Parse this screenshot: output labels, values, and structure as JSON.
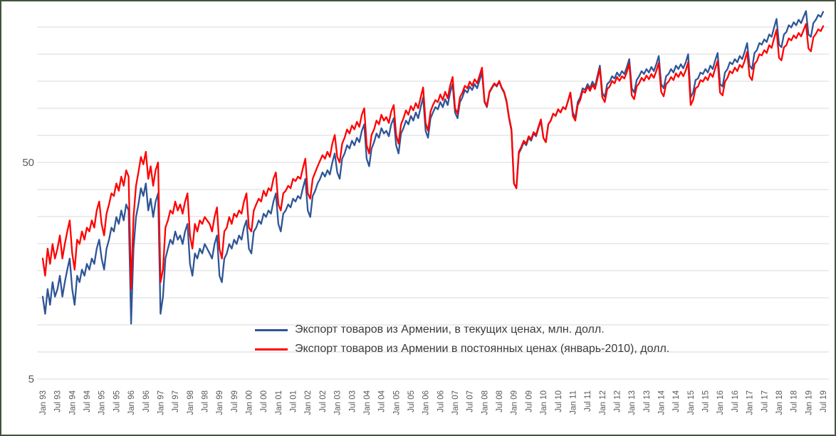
{
  "chart_data": {
    "type": "line",
    "title": "",
    "x_start": "Jan 1993",
    "x_freq": "monthly",
    "x_tick_labels": [
      "Jan 93",
      "Jul 93",
      "Jan 94",
      "Jul 94",
      "Jan 95",
      "Jul 95",
      "Jan 96",
      "Jul 96",
      "Jan 97",
      "Jul 97",
      "Jan 98",
      "Jul 98",
      "Jan 99",
      "Jul 99",
      "Jan 00",
      "Jul 00",
      "Jan 01",
      "Jul 01",
      "Jan 02",
      "Jul 02",
      "Jan 03",
      "Jul 03",
      "Jan 04",
      "Jul 04",
      "Jan 05",
      "Jul 05",
      "Jan 06",
      "Jul 06",
      "Jan 07",
      "Jul 07",
      "Jan 08",
      "Jul 08",
      "Jan 09",
      "Jul 09",
      "Jan 10",
      "Jul 10",
      "Jan 11",
      "Jul 11",
      "Jan 12",
      "Jul 12",
      "Jan 13",
      "Jul 13",
      "Jan 14",
      "Jul 14",
      "Jan 15",
      "Jul 15",
      "Jan 16",
      "Jul 16",
      "Jan 17",
      "Jul 17",
      "Jan 18",
      "Jul 18",
      "Jan 19",
      "Jul 19"
    ],
    "x_tick_step": 6,
    "y_axis": {
      "scale": "log",
      "tick_labels": [
        "50",
        "5"
      ],
      "tick_values": [
        50,
        5
      ],
      "ylim": [
        5,
        260
      ]
    },
    "grid": "horizontal",
    "legend_position": "inside-bottom-center",
    "series": [
      {
        "name": "Экспорт товаров из Армении, в текущих ценах, млн. долл.",
        "color": "#2e5596",
        "values": [
          12,
          10,
          13,
          11,
          14,
          12,
          13,
          15,
          12,
          14,
          16,
          18,
          13,
          11,
          15,
          14,
          16,
          15,
          17,
          16,
          18,
          17,
          20,
          22,
          18,
          16,
          20,
          22,
          25,
          24,
          28,
          26,
          30,
          27,
          32,
          30,
          9,
          20,
          28,
          32,
          38,
          35,
          40,
          30,
          34,
          28,
          33,
          36,
          10,
          12,
          18,
          20,
          22,
          21,
          24,
          22,
          23,
          21,
          24,
          26,
          17,
          15,
          19,
          18,
          20,
          19,
          21,
          20,
          19,
          18,
          21,
          23,
          15,
          14,
          18,
          19,
          21,
          20,
          22,
          21,
          23,
          22,
          25,
          27,
          20,
          19,
          24,
          25,
          27,
          26,
          29,
          28,
          30,
          29,
          33,
          36,
          26,
          24,
          29,
          30,
          32,
          31,
          34,
          33,
          35,
          34,
          38,
          42,
          30,
          28,
          35,
          37,
          40,
          42,
          45,
          43,
          46,
          44,
          50,
          55,
          45,
          42,
          52,
          55,
          60,
          58,
          63,
          60,
          65,
          62,
          70,
          75,
          52,
          48,
          58,
          62,
          68,
          65,
          72,
          68,
          70,
          66,
          75,
          80,
          60,
          55,
          68,
          72,
          78,
          75,
          82,
          78,
          85,
          80,
          90,
          100,
          70,
          65,
          80,
          85,
          90,
          88,
          95,
          90,
          98,
          92,
          105,
          115,
          85,
          80,
          95,
          100,
          108,
          105,
          112,
          108,
          115,
          110,
          120,
          130,
          95,
          90,
          105,
          110,
          115,
          112,
          118,
          110,
          105,
          95,
          80,
          70,
          40,
          38,
          55,
          58,
          62,
          60,
          65,
          63,
          68,
          66,
          72,
          78,
          65,
          62,
          75,
          78,
          84,
          82,
          88,
          85,
          90,
          88,
          96,
          105,
          85,
          80,
          95,
          100,
          110,
          108,
          115,
          110,
          118,
          112,
          125,
          140,
          105,
          100,
          115,
          118,
          125,
          122,
          130,
          125,
          132,
          128,
          138,
          150,
          110,
          105,
          120,
          125,
          132,
          128,
          135,
          130,
          138,
          132,
          142,
          155,
          115,
          110,
          125,
          128,
          135,
          130,
          140,
          135,
          142,
          136,
          145,
          158,
          100,
          105,
          120,
          122,
          130,
          128,
          135,
          130,
          140,
          135,
          148,
          160,
          115,
          112,
          130,
          135,
          145,
          142,
          150,
          145,
          155,
          150,
          162,
          178,
          140,
          135,
          160,
          165,
          178,
          175,
          185,
          180,
          195,
          190,
          210,
          230,
          175,
          170,
          195,
          200,
          215,
          210,
          222,
          215,
          228,
          220,
          235,
          250,
          195,
          190,
          220,
          228,
          240,
          235,
          248
        ]
      },
      {
        "name": "Экспорт товаров из Армении в постоянных ценах (январь-2010), долл.",
        "color": "#ff0000",
        "values": [
          18,
          15,
          20,
          17,
          21,
          18,
          20,
          23,
          18,
          21,
          24,
          27,
          19,
          16,
          22,
          21,
          24,
          22,
          25,
          24,
          27,
          25,
          30,
          33,
          26,
          23,
          29,
          32,
          36,
          35,
          40,
          37,
          43,
          39,
          46,
          43,
          13,
          28,
          39,
          45,
          53,
          49,
          56,
          42,
          48,
          39,
          46,
          50,
          14,
          16,
          25,
          27,
          30,
          29,
          33,
          30,
          32,
          29,
          33,
          36,
          23,
          20,
          26,
          24,
          27,
          26,
          28,
          27,
          26,
          24,
          28,
          31,
          20,
          18,
          24,
          25,
          28,
          26,
          29,
          28,
          30,
          29,
          33,
          36,
          25,
          24,
          30,
          32,
          34,
          33,
          37,
          35,
          38,
          37,
          42,
          45,
          32,
          30,
          36,
          37,
          39,
          38,
          42,
          41,
          43,
          42,
          47,
          52,
          36,
          34,
          42,
          45,
          48,
          51,
          54,
          52,
          56,
          53,
          61,
          67,
          53,
          50,
          61,
          65,
          71,
          68,
          74,
          71,
          77,
          73,
          83,
          89,
          60,
          55,
          67,
          71,
          78,
          75,
          83,
          78,
          81,
          76,
          86,
          92,
          67,
          61,
          75,
          80,
          87,
          83,
          91,
          87,
          94,
          89,
          100,
          111,
          76,
          70,
          86,
          92,
          97,
          95,
          103,
          97,
          106,
          99,
          113,
          124,
          89,
          84,
          100,
          105,
          113,
          110,
          118,
          113,
          121,
          116,
          126,
          137,
          96,
          91,
          106,
          111,
          116,
          113,
          119,
          111,
          106,
          96,
          81,
          71,
          40,
          38,
          56,
          59,
          63,
          61,
          66,
          64,
          69,
          67,
          73,
          79,
          65,
          62,
          75,
          78,
          84,
          82,
          88,
          85,
          90,
          88,
          96,
          105,
          82,
          78,
          92,
          97,
          107,
          105,
          112,
          107,
          114,
          109,
          121,
          136,
          100,
          95,
          109,
          112,
          119,
          116,
          124,
          119,
          125,
          122,
          131,
          143,
          102,
          98,
          112,
          116,
          123,
          119,
          126,
          121,
          128,
          123,
          132,
          144,
          106,
          101,
          115,
          118,
          124,
          120,
          129,
          124,
          131,
          125,
          133,
          145,
          92,
          97,
          110,
          112,
          120,
          118,
          124,
          120,
          129,
          124,
          136,
          147,
          105,
          102,
          118,
          123,
          132,
          129,
          137,
          132,
          141,
          137,
          147,
          162,
          125,
          120,
          142,
          147,
          158,
          156,
          165,
          160,
          174,
          169,
          187,
          205,
          152,
          148,
          170,
          174,
          187,
          183,
          193,
          187,
          198,
          191,
          204,
          218,
          168,
          163,
          189,
          196,
          206,
          202,
          213
        ]
      }
    ]
  },
  "colors": {
    "grid": "#d9d9d9",
    "tick_label": "#595959",
    "frame_border": "#44533c"
  }
}
